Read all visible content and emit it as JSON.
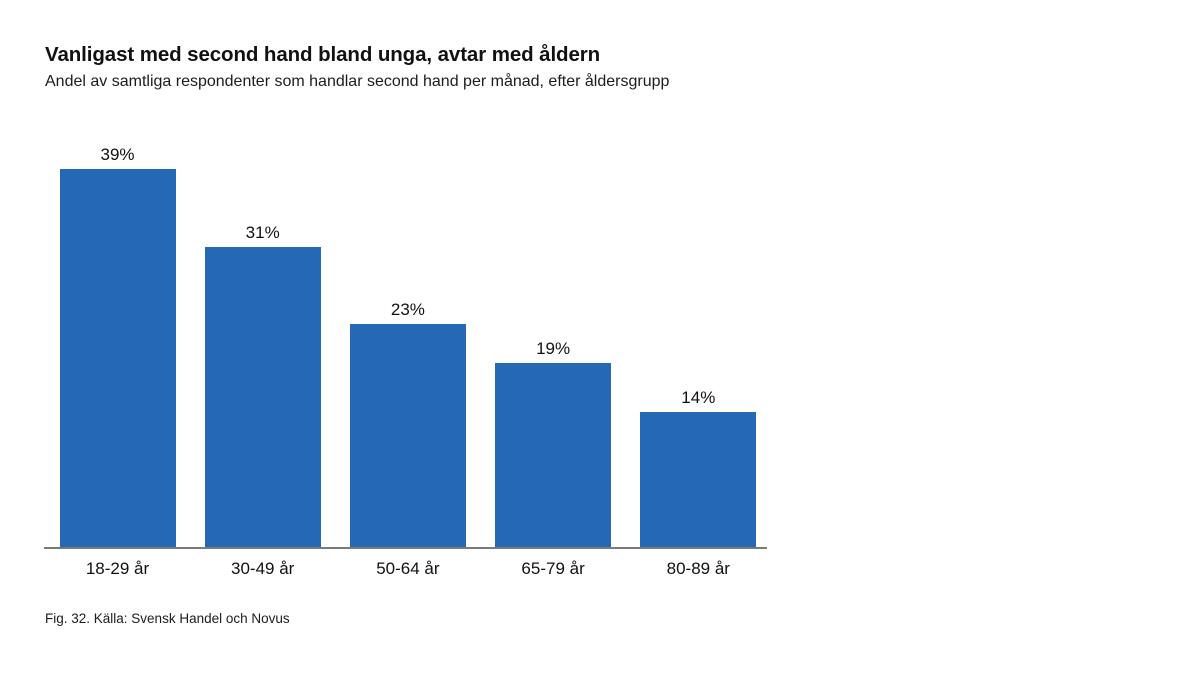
{
  "page": {
    "caption": "Fig. 32. Källa: Svensk Handel och Novus"
  },
  "chart_data": {
    "type": "bar",
    "title": "Vanligast med second hand bland unga, avtar med åldern",
    "subtitle": "Andel av samtliga respondenter som handlar second hand per månad, efter åldersgrupp",
    "categories": [
      "18-29 år",
      "30-49 år",
      "50-64 år",
      "65-79 år",
      "80-89 år"
    ],
    "values": [
      39,
      31,
      23,
      19,
      14
    ],
    "value_labels": [
      "39%",
      "31%",
      "23%",
      "19%",
      "14%"
    ],
    "xlabel": "",
    "ylabel": "",
    "ylim": [
      0,
      39
    ],
    "grid": false,
    "legend": false,
    "bar_color": "#2569b4",
    "axis_line_color": "#7a7a7a",
    "label_color": "#111111"
  }
}
